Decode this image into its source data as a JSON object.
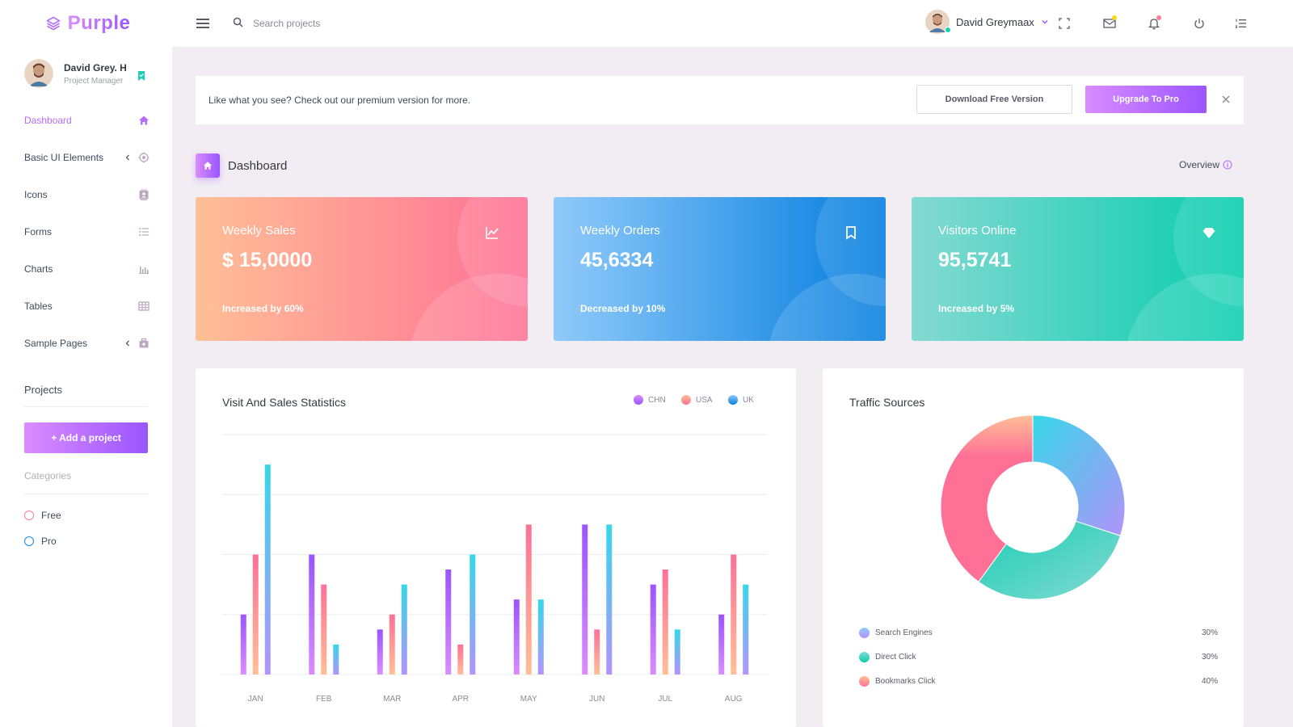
{
  "brand": {
    "name": "Purple"
  },
  "search": {
    "placeholder": "Search projects"
  },
  "navbar": {
    "profile_name": "David Greymaax"
  },
  "sidebar": {
    "user": {
      "name": "David Grey. H",
      "role": "Project Manager"
    },
    "items": [
      {
        "label": "Dashboard",
        "icon": "home-icon"
      },
      {
        "label": "Basic UI Elements",
        "icon": "crosshairs-icon"
      },
      {
        "label": "Icons",
        "icon": "contacts-icon"
      },
      {
        "label": "Forms",
        "icon": "format-list-icon"
      },
      {
        "label": "Charts",
        "icon": "bar-chart-icon"
      },
      {
        "label": "Tables",
        "icon": "table-icon"
      },
      {
        "label": "Sample Pages",
        "icon": "medical-bag-icon"
      }
    ],
    "projects_title": "Projects",
    "add_project_label": "+ Add a project",
    "categories_title": "Categories",
    "categories": [
      {
        "label": "Free",
        "color": "#fe7c96"
      },
      {
        "label": "Pro",
        "color": "#198ae3"
      }
    ]
  },
  "banner": {
    "text": "Like what you see? Check out our premium version for more.",
    "download_label": "Download Free Version",
    "upgrade_label": "Upgrade To Pro"
  },
  "page": {
    "title": "Dashboard",
    "overview_label": "Overview"
  },
  "stats": [
    {
      "label": "Weekly Sales",
      "value": "$ 15,0000",
      "foot": "Increased by 60%",
      "icon": "chart-line-icon"
    },
    {
      "label": "Weekly Orders",
      "value": "45,6334",
      "foot": "Decreased by 10%",
      "icon": "bookmark-icon"
    },
    {
      "label": "Visitors Online",
      "value": "95,5741",
      "foot": "Increased by 5%",
      "icon": "diamond-icon"
    }
  ],
  "visit_chart": {
    "title": "Visit And Sales Statistics",
    "chart_data": {
      "type": "bar",
      "categories": [
        "JAN",
        "FEB",
        "MAR",
        "APR",
        "MAY",
        "JUN",
        "JUL",
        "AUG"
      ],
      "series": [
        {
          "name": "CHN",
          "values": [
            20,
            40,
            15,
            35,
            25,
            50,
            30,
            20
          ]
        },
        {
          "name": "USA",
          "values": [
            40,
            30,
            20,
            10,
            50,
            15,
            35,
            40
          ]
        },
        {
          "name": "UK",
          "values": [
            70,
            10,
            30,
            40,
            25,
            50,
            15,
            30
          ]
        }
      ],
      "ylim": [
        0,
        80
      ],
      "grid": true,
      "legend_position": "top-right"
    },
    "colors": {
      "CHN": "#9a55ff",
      "USA": "#fe7c96",
      "UK": "#36d7e8"
    }
  },
  "traffic": {
    "title": "Traffic Sources",
    "chart_data": {
      "type": "pie",
      "labels": [
        "Search Engines",
        "Direct Click",
        "Bookmarks Click"
      ],
      "values": [
        30,
        30,
        40
      ]
    },
    "items": [
      {
        "name": "Search Engines",
        "percent": "30%",
        "color": "#8fb5f5"
      },
      {
        "name": "Direct Click",
        "percent": "30%",
        "color": "#2fc9ab"
      },
      {
        "name": "Bookmarks Click",
        "percent": "40%",
        "color": "#fe7c96"
      }
    ]
  }
}
